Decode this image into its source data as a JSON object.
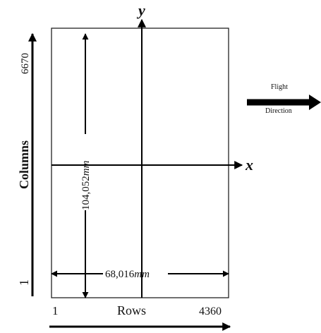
{
  "axes": {
    "y_label": "y",
    "x_label": "x"
  },
  "dimensions": {
    "height_value": "104,052",
    "height_unit": "mm",
    "width_value": "68,016",
    "width_unit": "mm"
  },
  "columns": {
    "label": "Columns",
    "start": "1",
    "end": "6670"
  },
  "rows": {
    "label": "Rows",
    "start": "1",
    "end": "4360"
  },
  "flight": {
    "line1": "Flight",
    "line2": "Direction"
  }
}
